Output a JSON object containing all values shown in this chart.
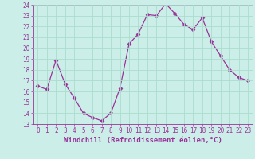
{
  "x": [
    0,
    1,
    2,
    3,
    4,
    5,
    6,
    7,
    8,
    9,
    10,
    11,
    12,
    13,
    14,
    15,
    16,
    17,
    18,
    19,
    20,
    21,
    22,
    23
  ],
  "y": [
    16.5,
    16.2,
    18.9,
    16.7,
    15.4,
    14.0,
    13.6,
    13.3,
    14.0,
    16.3,
    20.4,
    21.3,
    23.1,
    23.0,
    24.1,
    23.2,
    22.2,
    21.7,
    22.8,
    20.6,
    19.3,
    18.0,
    17.3,
    17.0
  ],
  "line_color": "#993399",
  "marker": "D",
  "marker_size": 2.5,
  "bg_color": "#cceee8",
  "grid_color": "#aaddcc",
  "xlabel": "Windchill (Refroidissement éolien,°C)",
  "ylim": [
    13,
    24
  ],
  "xlim": [
    -0.5,
    23.5
  ],
  "yticks": [
    13,
    14,
    15,
    16,
    17,
    18,
    19,
    20,
    21,
    22,
    23,
    24
  ],
  "xticks": [
    0,
    1,
    2,
    3,
    4,
    5,
    6,
    7,
    8,
    9,
    10,
    11,
    12,
    13,
    14,
    15,
    16,
    17,
    18,
    19,
    20,
    21,
    22,
    23
  ],
  "tick_color": "#993399",
  "label_fontsize": 6.5,
  "tick_fontsize": 5.5
}
